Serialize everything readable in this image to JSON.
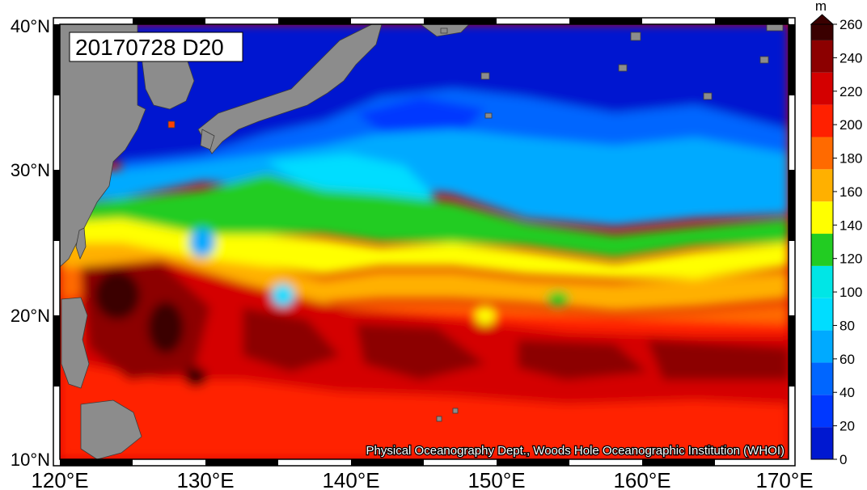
{
  "map": {
    "annotation": "20170728 D20",
    "credit": "Physical Oceanography Dept., Woods Hole Oceanographic Institution (WHOI)",
    "longitude_labels": [
      "120°E",
      "130°E",
      "140°E",
      "150°E",
      "160°E",
      "170°E"
    ],
    "latitude_labels": [
      "40°N",
      "30°N",
      "20°N",
      "10°N"
    ],
    "land_color": "#8c8c8c"
  },
  "colorbar": {
    "unit": "m",
    "tick_labels": [
      "260",
      "240",
      "220",
      "200",
      "180",
      "160",
      "140",
      "120",
      "100",
      "80",
      "60",
      "40",
      "20",
      "0"
    ],
    "bands_low_to_high": [
      "#0018d0",
      "#0038ff",
      "#0066ff",
      "#00aaff",
      "#00ddff",
      "#00e6e6",
      "#22cc22",
      "#ffff00",
      "#ffb000",
      "#ff6a00",
      "#ff2000",
      "#d40000",
      "#8c0000",
      "#3a0000"
    ]
  }
}
